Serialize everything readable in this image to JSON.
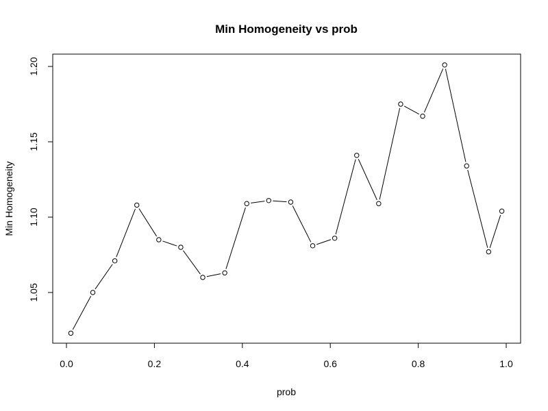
{
  "chart_data": {
    "type": "line",
    "title": "Min Homogeneity vs prob",
    "xlabel": "prob",
    "ylabel": "Min Homogeneity",
    "xlim": [
      0.0,
      1.0
    ],
    "ylim": [
      1.05,
      1.2
    ],
    "x_ticks": [
      {
        "value": 0.0,
        "label": "0.0"
      },
      {
        "value": 0.2,
        "label": "0.2"
      },
      {
        "value": 0.4,
        "label": "0.4"
      },
      {
        "value": 0.6,
        "label": "0.6"
      },
      {
        "value": 0.8,
        "label": "0.8"
      },
      {
        "value": 1.0,
        "label": "1.0"
      }
    ],
    "y_ticks": [
      {
        "value": 1.05,
        "label": "1.05"
      },
      {
        "value": 1.1,
        "label": "1.10"
      },
      {
        "value": 1.15,
        "label": "1.15"
      },
      {
        "value": 1.2,
        "label": "1.20"
      }
    ],
    "grid": false,
    "series": [
      {
        "points": [
          {
            "x": 0.01,
            "y": 1.023
          },
          {
            "x": 0.06,
            "y": 1.05
          },
          {
            "x": 0.11,
            "y": 1.071
          },
          {
            "x": 0.16,
            "y": 1.108
          },
          {
            "x": 0.21,
            "y": 1.085
          },
          {
            "x": 0.26,
            "y": 1.08
          },
          {
            "x": 0.31,
            "y": 1.06
          },
          {
            "x": 0.36,
            "y": 1.063
          },
          {
            "x": 0.41,
            "y": 1.109
          },
          {
            "x": 0.46,
            "y": 1.111
          },
          {
            "x": 0.51,
            "y": 1.11
          },
          {
            "x": 0.56,
            "y": 1.081
          },
          {
            "x": 0.61,
            "y": 1.086
          },
          {
            "x": 0.66,
            "y": 1.141
          },
          {
            "x": 0.71,
            "y": 1.109
          },
          {
            "x": 0.76,
            "y": 1.175
          },
          {
            "x": 0.81,
            "y": 1.167
          },
          {
            "x": 0.86,
            "y": 1.201
          },
          {
            "x": 0.91,
            "y": 1.134
          },
          {
            "x": 0.96,
            "y": 1.077
          },
          {
            "x": 0.99,
            "y": 1.104
          }
        ]
      }
    ]
  }
}
